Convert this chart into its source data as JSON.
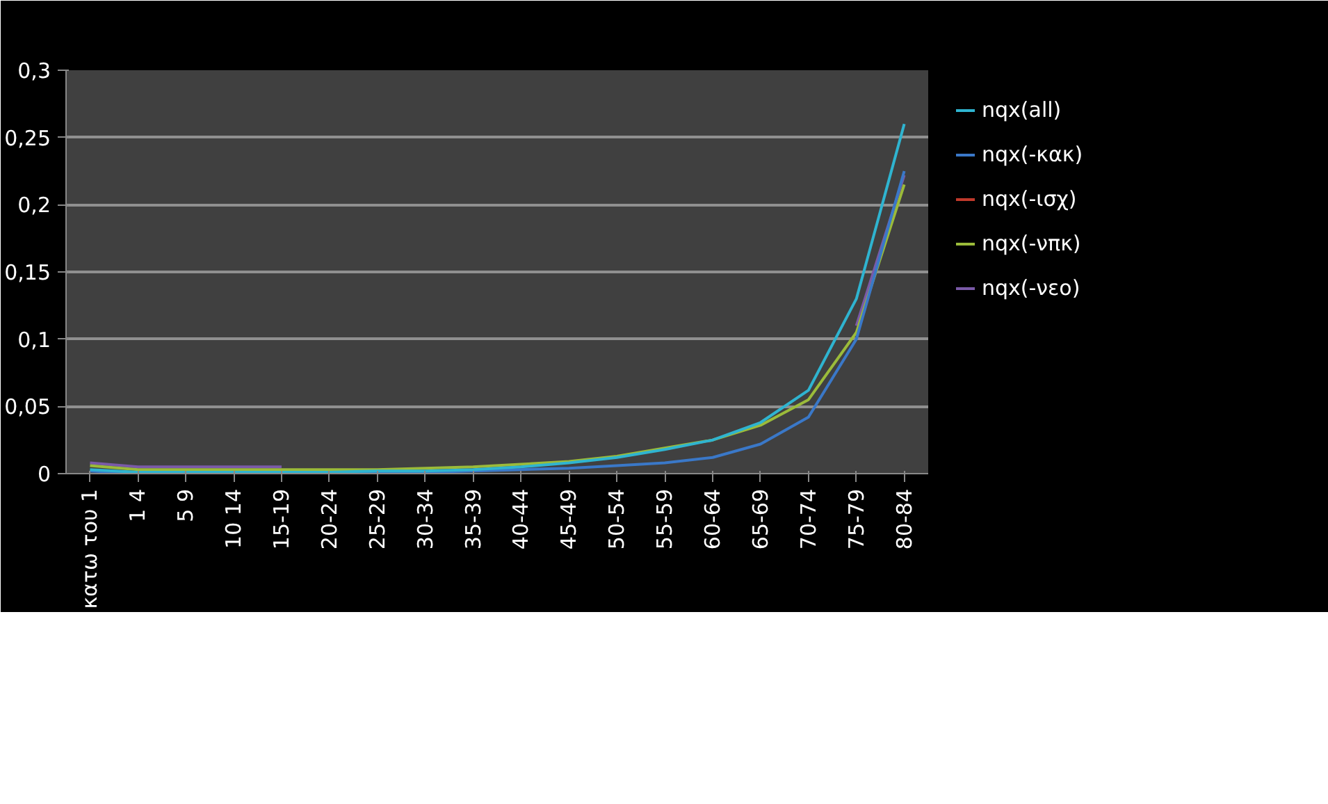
{
  "chart_data": {
    "type": "line",
    "categories": [
      "κατω του 1",
      "1 4",
      "5 9",
      "10 14",
      "15-19",
      "20-24",
      "25-29",
      "30-34",
      "35-39",
      "40-44",
      "45-49",
      "50-54",
      "55-59",
      "60-64",
      "65-69",
      "70-74",
      "75-79",
      "80-84"
    ],
    "series": [
      {
        "name": "nqx(all)",
        "color": "#2fb4d0",
        "values": [
          0.003,
          0.001,
          0.001,
          0.001,
          0.001,
          0.001,
          0.002,
          0.002,
          0.003,
          0.005,
          0.008,
          0.012,
          0.018,
          0.025,
          0.038,
          0.062,
          0.13,
          0.26
        ]
      },
      {
        "name": "nqx(-κακ)",
        "color": "#3a78c8",
        "values": [
          0.002,
          0,
          0,
          0,
          0,
          0,
          0,
          0.001,
          0.002,
          0.003,
          0.004,
          0.006,
          0.008,
          0.012,
          0.022,
          0.042,
          0.1,
          0.225
        ]
      },
      {
        "name": "nqx(-ισχ)",
        "color": "#c0392b",
        "values": [
          null,
          null,
          null,
          null,
          null,
          null,
          null,
          null,
          null,
          null,
          null,
          null,
          null,
          null,
          null,
          null,
          null,
          null
        ]
      },
      {
        "name": "nqx(-νπκ)",
        "color": "#9bbb3a",
        "values": [
          0.006,
          0.003,
          0.003,
          0.003,
          0.003,
          0.003,
          0.003,
          0.004,
          0.005,
          0.007,
          0.009,
          0.013,
          0.019,
          0.025,
          0.036,
          0.055,
          0.105,
          0.215
        ]
      },
      {
        "name": "nqx(-νεο)",
        "color": "#7a5aa8",
        "values": [
          0.008,
          0.005,
          0.005,
          0.005,
          0.005,
          null,
          null,
          null,
          null,
          null,
          null,
          null,
          null,
          null,
          null,
          null,
          0.11,
          0.222
        ]
      }
    ],
    "ylim": [
      0,
      0.3
    ],
    "yticks": [
      {
        "value": 0,
        "label": "0"
      },
      {
        "value": 0.05,
        "label": "0,05"
      },
      {
        "value": 0.1,
        "label": "0,1"
      },
      {
        "value": 0.15,
        "label": "0,15"
      },
      {
        "value": 0.2,
        "label": "0,2"
      },
      {
        "value": 0.25,
        "label": "0,25"
      },
      {
        "value": 0.3,
        "label": "0,3"
      }
    ],
    "grid": "y",
    "legend": "right",
    "marker": "none",
    "line_style": "solid"
  }
}
